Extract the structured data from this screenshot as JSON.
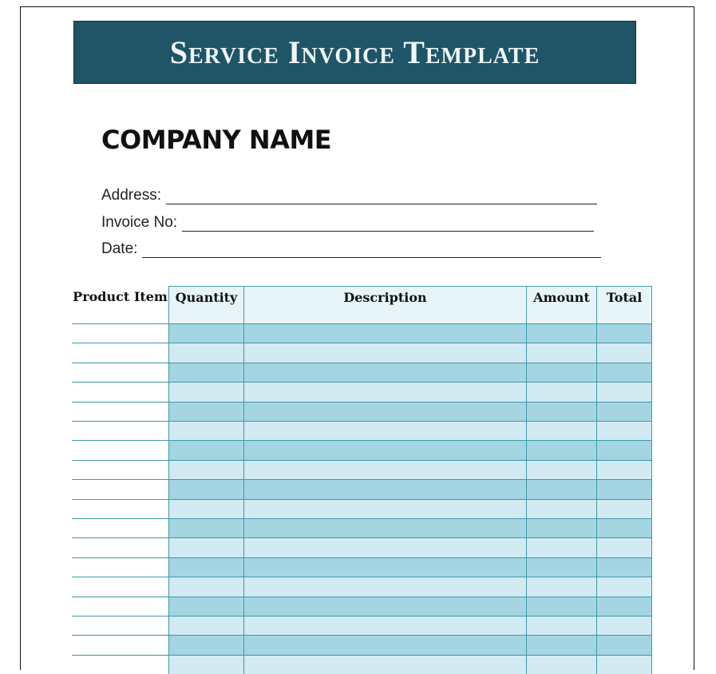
{
  "title": "Service Invoice Template",
  "company_name": "COMPANY NAME",
  "fields": {
    "address": "Address:",
    "invoice_no": "Invoice No:",
    "date": "Date:"
  },
  "table": {
    "columns": [
      "Product Item",
      "Quantity",
      "Description",
      "Amount",
      "Total"
    ],
    "rows": [
      [
        "",
        "",
        "",
        "",
        ""
      ],
      [
        "",
        "",
        "",
        "",
        ""
      ],
      [
        "",
        "",
        "",
        "",
        ""
      ],
      [
        "",
        "",
        "",
        "",
        ""
      ],
      [
        "",
        "",
        "",
        "",
        ""
      ],
      [
        "",
        "",
        "",
        "",
        ""
      ],
      [
        "",
        "",
        "",
        "",
        ""
      ],
      [
        "",
        "",
        "",
        "",
        ""
      ],
      [
        "",
        "",
        "",
        "",
        ""
      ],
      [
        "",
        "",
        "",
        "",
        ""
      ],
      [
        "",
        "",
        "",
        "",
        ""
      ],
      [
        "",
        "",
        "",
        "",
        ""
      ],
      [
        "",
        "",
        "",
        "",
        ""
      ],
      [
        "",
        "",
        "",
        "",
        ""
      ],
      [
        "",
        "",
        "",
        "",
        ""
      ],
      [
        "",
        "",
        "",
        "",
        ""
      ],
      [
        "",
        "",
        "",
        "",
        ""
      ],
      [
        "",
        "",
        "",
        "",
        ""
      ]
    ]
  },
  "colors": {
    "banner": "#1f5566",
    "row_dark": "#a5d5e2",
    "row_light": "#d2eaf2",
    "header_bg": "#e7f4f8",
    "grid": "#3f98a8"
  }
}
